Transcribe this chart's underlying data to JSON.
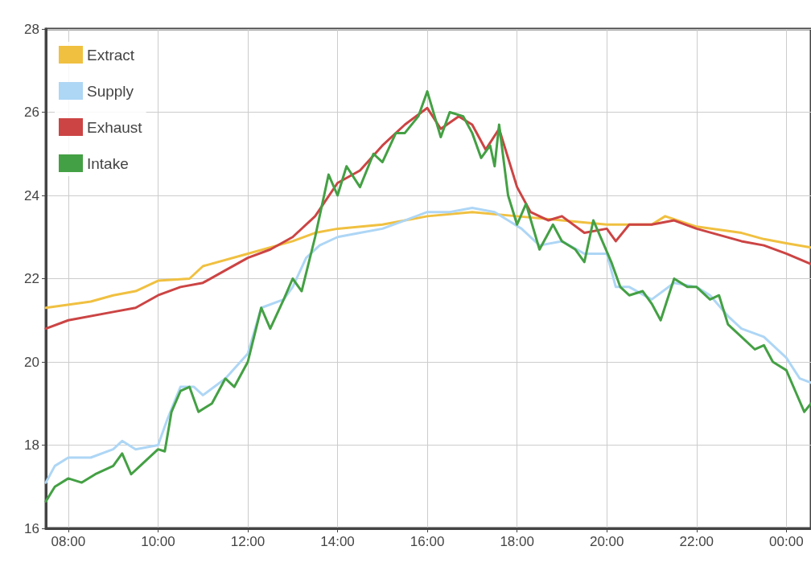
{
  "chart_data": {
    "type": "line",
    "xlim": [
      7.5,
      24.55
    ],
    "xticks": [
      {
        "value": 8,
        "label": "08:00"
      },
      {
        "value": 10,
        "label": "10:00"
      },
      {
        "value": 12,
        "label": "12:00"
      },
      {
        "value": 14,
        "label": "14:00"
      },
      {
        "value": 16,
        "label": "16:00"
      },
      {
        "value": 18,
        "label": "18:00"
      },
      {
        "value": 20,
        "label": "20:00"
      },
      {
        "value": 22,
        "label": "22:00"
      },
      {
        "value": 24,
        "label": "00:00"
      }
    ],
    "ylim": [
      16,
      28
    ],
    "yticks": [
      16,
      18,
      20,
      22,
      24,
      26,
      28
    ],
    "grid": true,
    "legend": "top left",
    "marker": "none",
    "line_style": "solid",
    "series": [
      {
        "name": "Extract",
        "color": "#f0c040",
        "x": [
          7.5,
          8.5,
          9,
          9.5,
          10,
          10.7,
          11,
          12,
          13,
          13.5,
          14,
          15,
          16,
          17,
          18,
          19,
          20,
          21,
          21.3,
          22,
          23,
          23.5,
          24,
          24.55
        ],
        "values": [
          21.3,
          21.45,
          21.6,
          21.7,
          21.95,
          22.0,
          22.3,
          22.6,
          22.9,
          23.1,
          23.2,
          23.3,
          23.5,
          23.6,
          23.5,
          23.4,
          23.3,
          23.3,
          23.5,
          23.25,
          23.1,
          22.95,
          22.85,
          22.75
        ]
      },
      {
        "name": "Supply",
        "color": "#aed6f5",
        "x": [
          7.5,
          7.7,
          8,
          8.5,
          9,
          9.2,
          9.5,
          10,
          10.2,
          10.5,
          10.8,
          11.0,
          11.5,
          12,
          12.3,
          12.8,
          13,
          13.3,
          13.6,
          14,
          14.5,
          15,
          15.5,
          16,
          16.5,
          17,
          17.5,
          17.8,
          18.1,
          18.5,
          19,
          19.5,
          20,
          20.2,
          20.5,
          21,
          21.5,
          22,
          22.3,
          22.7,
          23,
          23.5,
          24,
          24.3,
          24.55
        ],
        "values": [
          17.1,
          17.5,
          17.7,
          17.7,
          17.9,
          18.1,
          17.9,
          18.0,
          18.6,
          19.4,
          19.4,
          19.2,
          19.6,
          20.2,
          21.3,
          21.5,
          21.8,
          22.5,
          22.8,
          23.0,
          23.1,
          23.2,
          23.4,
          23.6,
          23.6,
          23.7,
          23.6,
          23.4,
          23.2,
          22.8,
          22.9,
          22.6,
          22.6,
          21.8,
          21.8,
          21.5,
          21.9,
          21.8,
          21.6,
          21.1,
          20.8,
          20.6,
          20.1,
          19.6,
          19.5
        ]
      },
      {
        "name": "Exhaust",
        "color": "#cc4444",
        "x": [
          7.5,
          8,
          9,
          9.5,
          10,
          10.5,
          11,
          11.5,
          12,
          12.5,
          13,
          13.5,
          14,
          14.5,
          15,
          15.5,
          16,
          16.3,
          16.7,
          17,
          17.3,
          17.6,
          18,
          18.3,
          18.7,
          19,
          19.5,
          20,
          20.2,
          20.5,
          21,
          21.5,
          22,
          23,
          23.5,
          24,
          24.55
        ],
        "values": [
          20.8,
          21.0,
          21.2,
          21.3,
          21.6,
          21.8,
          21.9,
          22.2,
          22.5,
          22.7,
          23.0,
          23.5,
          24.3,
          24.6,
          25.2,
          25.7,
          26.1,
          25.6,
          25.9,
          25.7,
          25.1,
          25.6,
          24.2,
          23.6,
          23.4,
          23.5,
          23.1,
          23.2,
          22.9,
          23.3,
          23.3,
          23.4,
          23.2,
          22.9,
          22.8,
          22.6,
          22.35
        ]
      },
      {
        "name": "Intake",
        "color": "#44a044",
        "x": [
          7.5,
          7.7,
          8,
          8.3,
          8.6,
          9,
          9.2,
          9.4,
          9.6,
          10,
          10.15,
          10.3,
          10.5,
          10.7,
          10.9,
          11.2,
          11.5,
          11.7,
          12,
          12.3,
          12.5,
          12.8,
          13,
          13.2,
          13.5,
          13.8,
          14,
          14.2,
          14.5,
          14.8,
          15,
          15.3,
          15.5,
          15.8,
          16,
          16.3,
          16.5,
          16.8,
          17.0,
          17.2,
          17.4,
          17.5,
          17.6,
          17.8,
          18.0,
          18.2,
          18.5,
          18.8,
          19.0,
          19.3,
          19.5,
          19.7,
          19.9,
          20.1,
          20.3,
          20.5,
          20.8,
          21.0,
          21.2,
          21.5,
          21.8,
          22.0,
          22.3,
          22.5,
          22.7,
          23.0,
          23.3,
          23.5,
          23.7,
          24.0,
          24.2,
          24.4,
          24.55
        ],
        "values": [
          16.65,
          17.0,
          17.2,
          17.1,
          17.3,
          17.5,
          17.8,
          17.3,
          17.5,
          17.9,
          17.85,
          18.8,
          19.3,
          19.4,
          18.8,
          19.0,
          19.6,
          19.4,
          20.0,
          21.3,
          20.8,
          21.5,
          22.0,
          21.7,
          23.0,
          24.5,
          24.0,
          24.7,
          24.2,
          25.0,
          24.8,
          25.5,
          25.5,
          25.9,
          26.5,
          25.4,
          26.0,
          25.9,
          25.5,
          24.9,
          25.2,
          24.7,
          25.7,
          24.0,
          23.3,
          23.8,
          22.7,
          23.3,
          22.9,
          22.7,
          22.4,
          23.4,
          22.9,
          22.4,
          21.8,
          21.6,
          21.7,
          21.4,
          21.0,
          22.0,
          21.8,
          21.8,
          21.5,
          21.6,
          20.9,
          20.6,
          20.3,
          20.4,
          20.0,
          19.8,
          19.3,
          18.8,
          19.0
        ]
      }
    ]
  }
}
